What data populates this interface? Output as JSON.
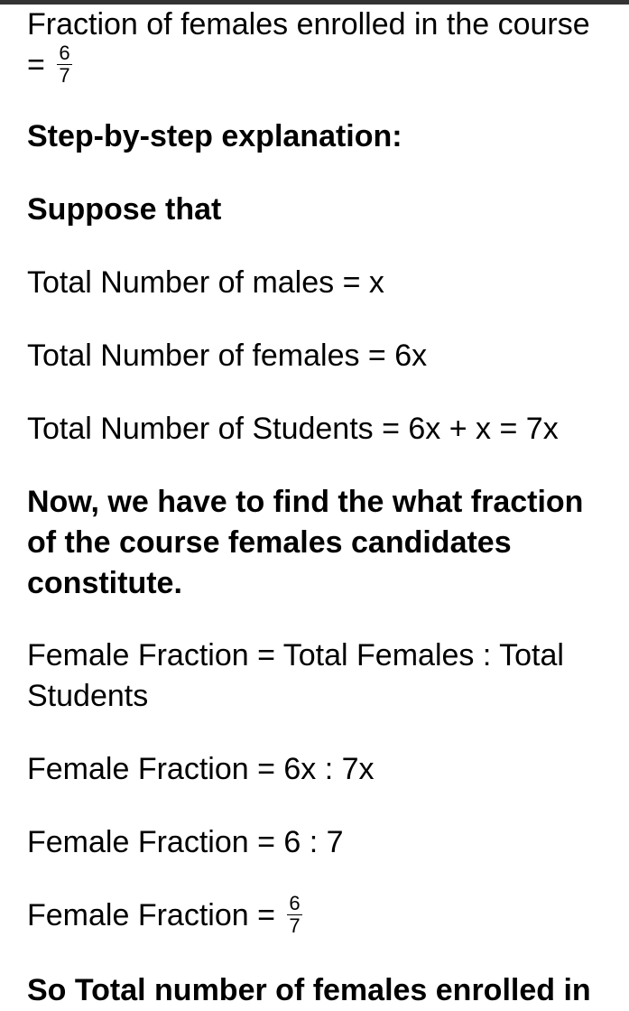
{
  "line1_prefix": "Fraction of females enrolled in the course = ",
  "frac1_num": "6",
  "frac1_den": "7",
  "step_heading": "Step-by-step explanation:",
  "suppose": "Suppose that",
  "males": "Total Number of males = x",
  "females": "Total Number of females = 6x",
  "students": "Total Number of Students = 6x + x = 7x",
  "now_find": "Now, we have to find the what fraction of the course females candidates constitute.",
  "ff_def": "Female Fraction = Total Females : Total Students",
  "ff_ratio1": "Female Fraction = 6x : 7x",
  "ff_ratio2": "Female Fraction = 6 : 7",
  "ff_final_prefix": "Female Fraction = ",
  "frac2_num": "6",
  "frac2_den": "7",
  "so_total": "So Total number of females enrolled in"
}
